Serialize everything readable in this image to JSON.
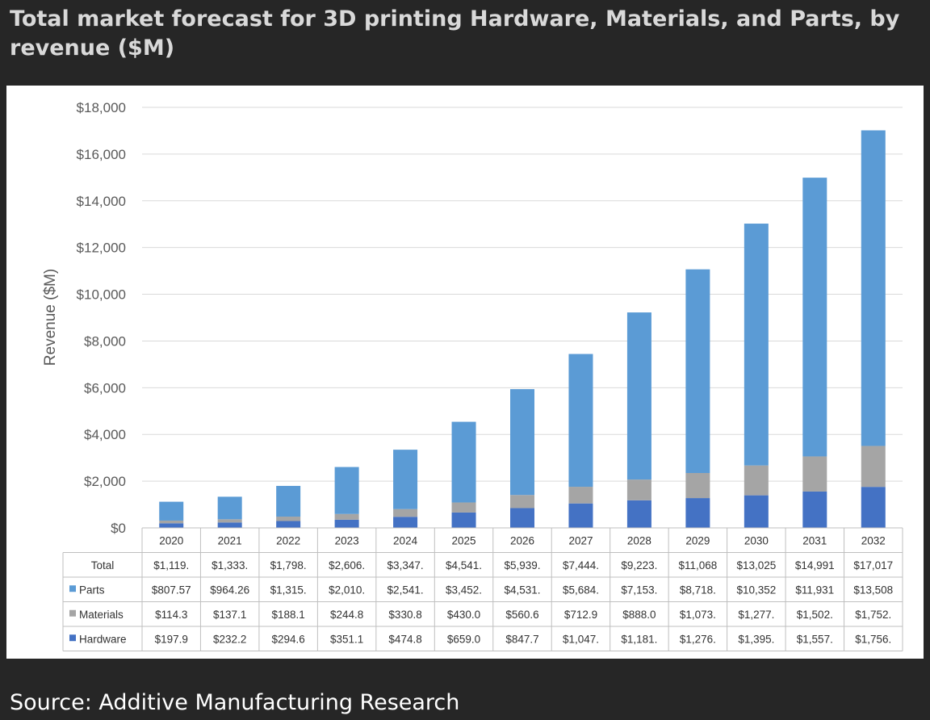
{
  "title": "Total market forecast for 3D printing Hardware, Materials, and Parts, by revenue ($M)",
  "source": "Source: Additive Manufacturing Research",
  "colors": {
    "background": "#262626",
    "panel": "#ffffff",
    "Hardware": "#4472c4",
    "Materials": "#a5a5a5",
    "Parts": "#5b9bd5",
    "grid": "#d9d9d9"
  },
  "chart_data": {
    "type": "bar",
    "stacked": true,
    "ylabel": "Revenue ($M)",
    "ylim": [
      0,
      18000
    ],
    "yticks": [
      "$0",
      "$2,000",
      "$4,000",
      "$6,000",
      "$8,000",
      "$10,000",
      "$12,000",
      "$14,000",
      "$16,000",
      "$18,000"
    ],
    "grid": true,
    "categories": [
      "2020",
      "2021",
      "2022",
      "2023",
      "2024",
      "2025",
      "2026",
      "2027",
      "2028",
      "2029",
      "2030",
      "2031",
      "2032"
    ],
    "series": [
      {
        "name": "Hardware",
        "values": [
          197.9,
          232.2,
          294.6,
          351.1,
          474.8,
          659.0,
          847.7,
          1047,
          1181,
          1276,
          1395,
          1557,
          1756
        ]
      },
      {
        "name": "Materials",
        "values": [
          114.3,
          137.1,
          188.1,
          244.8,
          330.8,
          430.0,
          560.6,
          712.9,
          888.0,
          1073,
          1277,
          1502,
          1752
        ]
      },
      {
        "name": "Parts",
        "values": [
          807.57,
          964.26,
          1315,
          2010,
          2541,
          3452,
          4531,
          5684,
          7153,
          8718,
          10352,
          11931,
          13508
        ]
      }
    ],
    "table": {
      "rows": [
        {
          "label": "Total",
          "swatch": "",
          "cells": [
            "$1,119.",
            "$1,333.",
            "$1,798.",
            "$2,606.",
            "$3,347.",
            "$4,541.",
            "$5,939.",
            "$7,444.",
            "$9,223.",
            "$11,068",
            "$13,025",
            "$14,991",
            "$17,017"
          ]
        },
        {
          "label": "Parts",
          "swatch": "Parts",
          "cells": [
            "$807.57",
            "$964.26",
            "$1,315.",
            "$2,010.",
            "$2,541.",
            "$3,452.",
            "$4,531.",
            "$5,684.",
            "$7,153.",
            "$8,718.",
            "$10,352",
            "$11,931",
            "$13,508"
          ]
        },
        {
          "label": "Materials",
          "swatch": "Materials",
          "cells": [
            "$114.3",
            "$137.1",
            "$188.1",
            "$244.8",
            "$330.8",
            "$430.0",
            "$560.6",
            "$712.9",
            "$888.0",
            "$1,073.",
            "$1,277.",
            "$1,502.",
            "$1,752."
          ]
        },
        {
          "label": "Hardware",
          "swatch": "Hardware",
          "cells": [
            "$197.9",
            "$232.2",
            "$294.6",
            "$351.1",
            "$474.8",
            "$659.0",
            "$847.7",
            "$1,047.",
            "$1,181.",
            "$1,276.",
            "$1,395.",
            "$1,557.",
            "$1,756."
          ]
        }
      ]
    }
  }
}
